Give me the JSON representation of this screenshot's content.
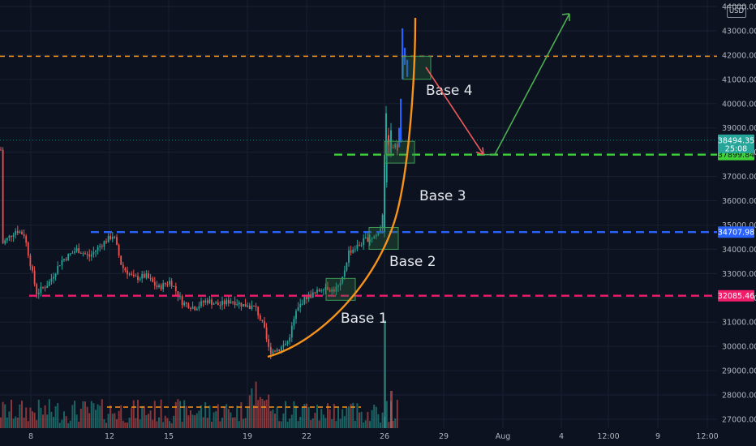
{
  "currency": "USD",
  "colors": {
    "background": "#0c1220",
    "up": "#26a69a",
    "down": "#ef5350",
    "orange": "#f7931a",
    "blue_line": "#2962ff",
    "pink_line": "#f21d6a",
    "green_line": "#3fd23a",
    "green_arrow": "#4caf50",
    "red_arrow": "#f05a5a",
    "base_box": "#2e6b3f"
  },
  "chart_data": {
    "type": "candlestick",
    "y_axis": {
      "ylim": [
        26700,
        44100
      ],
      "ticks": [
        "27000.00",
        "28000.00",
        "29000.00",
        "30000.00",
        "31000.00",
        "32000.00",
        "33000.00",
        "34000.00",
        "35000.00",
        "36000.00",
        "37000.00",
        "38000.00",
        "39000.00",
        "40000.00",
        "41000.00",
        "42000.00",
        "43000.00",
        "44000.00"
      ]
    },
    "x_axis": {
      "ticks": [
        "8",
        "12",
        "15",
        "19",
        "22",
        "26",
        "29",
        "Aug",
        "4",
        "12:00",
        "9",
        "12:00"
      ]
    },
    "horizontal_levels": [
      {
        "name": "orange-level",
        "value": 41950,
        "badge": ""
      },
      {
        "name": "green-level",
        "value": 37899.84,
        "badge": "37899.84"
      },
      {
        "name": "blue-level",
        "value": 34707.98,
        "badge": "34707.98"
      },
      {
        "name": "pink-level",
        "value": 32085.46,
        "badge": "32085.46"
      }
    ],
    "last_price": {
      "value": "38494.35",
      "countdown": "25:08"
    },
    "bases": [
      {
        "label": "Base 1",
        "low": 31900,
        "high": 32800
      },
      {
        "label": "Base 2",
        "low": 34000,
        "high": 34900
      },
      {
        "label": "Base 3",
        "low": 37550,
        "high": 38450
      },
      {
        "label": "Base 4",
        "low": 41000,
        "high": 41950
      }
    ],
    "projection": {
      "down_target": 37899.84,
      "up_target": 43700
    },
    "volume_avg_label": ""
  }
}
